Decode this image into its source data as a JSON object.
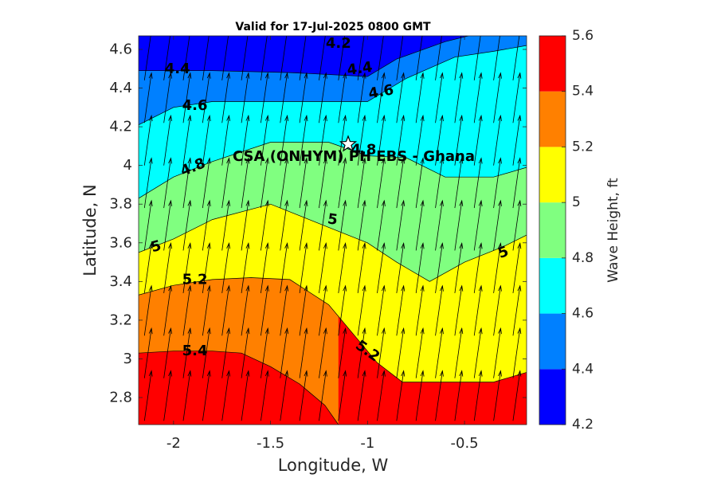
{
  "chart_data": {
    "type": "heatmap",
    "subtype": "filled-contour",
    "title": "Valid for 17-Jul-2025 0800 GMT",
    "xlabel": "Longitude, W",
    "ylabel": "Latitude, N",
    "xlim": [
      -2.18,
      -0.18
    ],
    "ylim": [
      2.66,
      4.67
    ],
    "xticks": [
      -2,
      -1.5,
      -1,
      -0.5
    ],
    "xtick_labels": [
      "-2",
      "-1.5",
      "-1",
      "-0.5"
    ],
    "yticks": [
      2.8,
      3.0,
      3.2,
      3.4,
      3.6,
      3.8,
      4.0,
      4.2,
      4.4,
      4.6
    ],
    "ytick_labels": [
      "2.8",
      "3",
      "3.2",
      "3.4",
      "3.6",
      "3.8",
      "4",
      "4.2",
      "4.4",
      "4.6"
    ],
    "colorbar": {
      "label": "Wave Height, ft",
      "levels": [
        4.2,
        4.4,
        4.6,
        4.8,
        5.0,
        5.2,
        5.4,
        5.6
      ],
      "level_labels": [
        "4.2",
        "4.4",
        "4.6",
        "4.8",
        "5",
        "5.2",
        "5.4",
        "5.6"
      ],
      "colors": [
        "#0000ff",
        "#0080ff",
        "#00ffff",
        "#80ff80",
        "#ffff00",
        "#ff8000",
        "#ff0000"
      ]
    },
    "contours": [
      {
        "level": 4.4,
        "points": [
          [
            -2.18,
            4.49
          ],
          [
            -1.8,
            4.49
          ],
          [
            -1.4,
            4.48
          ],
          [
            -1.0,
            4.46
          ],
          [
            -0.85,
            4.55
          ],
          [
            -0.6,
            4.64
          ],
          [
            -0.48,
            4.67
          ]
        ]
      },
      {
        "level": 4.6,
        "points": [
          [
            -2.18,
            4.21
          ],
          [
            -2.0,
            4.3
          ],
          [
            -1.8,
            4.33
          ],
          [
            -1.4,
            4.33
          ],
          [
            -1.0,
            4.33
          ],
          [
            -0.8,
            4.45
          ],
          [
            -0.55,
            4.56
          ],
          [
            -0.35,
            4.59
          ],
          [
            -0.18,
            4.62
          ]
        ]
      },
      {
        "level": 4.8,
        "points": [
          [
            -2.18,
            3.83
          ],
          [
            -2.0,
            3.94
          ],
          [
            -1.8,
            4.02
          ],
          [
            -1.5,
            4.12
          ],
          [
            -1.2,
            4.12
          ],
          [
            -1.0,
            4.05
          ],
          [
            -0.8,
            4.04
          ],
          [
            -0.6,
            3.94
          ],
          [
            -0.35,
            3.94
          ],
          [
            -0.18,
            3.99
          ]
        ]
      },
      {
        "level": 5.0,
        "points": [
          [
            -2.18,
            3.55
          ],
          [
            -2.0,
            3.62
          ],
          [
            -1.8,
            3.72
          ],
          [
            -1.5,
            3.8
          ],
          [
            -1.2,
            3.68
          ],
          [
            -1.0,
            3.6
          ],
          [
            -0.85,
            3.5
          ],
          [
            -0.68,
            3.4
          ],
          [
            -0.5,
            3.5
          ],
          [
            -0.3,
            3.58
          ],
          [
            -0.18,
            3.64
          ]
        ]
      },
      {
        "level": 5.2,
        "points": [
          [
            -2.18,
            3.33
          ],
          [
            -2.0,
            3.38
          ],
          [
            -1.8,
            3.41
          ],
          [
            -1.6,
            3.42
          ],
          [
            -1.4,
            3.41
          ],
          [
            -1.2,
            3.28
          ],
          [
            -1.05,
            3.1
          ],
          [
            -0.95,
            2.98
          ],
          [
            -0.82,
            2.88
          ],
          [
            -0.6,
            2.88
          ],
          [
            -0.35,
            2.88
          ],
          [
            -0.18,
            2.93
          ]
        ]
      },
      {
        "level": 5.4,
        "points": [
          [
            -2.18,
            3.03
          ],
          [
            -2.0,
            3.04
          ],
          [
            -1.8,
            3.04
          ],
          [
            -1.65,
            3.03
          ],
          [
            -1.5,
            2.96
          ],
          [
            -1.35,
            2.87
          ],
          [
            -1.22,
            2.76
          ],
          [
            -1.15,
            2.66
          ]
        ]
      }
    ],
    "contour_labels": [
      {
        "text": "4.2",
        "x": -1.15,
        "y": 4.63,
        "angle": 0
      },
      {
        "text": "4.4",
        "x": -1.98,
        "y": 4.5,
        "angle": 0
      },
      {
        "text": "4.4",
        "x": -1.04,
        "y": 4.5,
        "angle": -8
      },
      {
        "text": "4.6",
        "x": -1.89,
        "y": 4.31,
        "angle": 0
      },
      {
        "text": "4.6",
        "x": -0.93,
        "y": 4.38,
        "angle": -10
      },
      {
        "text": "4.8",
        "x": -1.9,
        "y": 3.99,
        "angle": -22
      },
      {
        "text": "4.8",
        "x": -1.02,
        "y": 4.08,
        "angle": 0
      },
      {
        "text": "5",
        "x": -2.09,
        "y": 3.58,
        "angle": -15
      },
      {
        "text": "5",
        "x": -1.18,
        "y": 3.72,
        "angle": 8
      },
      {
        "text": "5",
        "x": -0.3,
        "y": 3.55,
        "angle": -20
      },
      {
        "text": "5.2",
        "x": -1.89,
        "y": 3.41,
        "angle": 0
      },
      {
        "text": "5.2",
        "x": -1.0,
        "y": 3.04,
        "angle": 35
      },
      {
        "text": "5.4",
        "x": -1.89,
        "y": 3.04,
        "angle": 0
      }
    ],
    "site": {
      "name": "CSA (ONHYM) PH EBS  - Ghana",
      "x": -1.1,
      "y": 4.11,
      "marker": "star"
    },
    "vectors": {
      "x": [
        -2.15,
        -2.05,
        -1.95,
        -1.85,
        -1.75,
        -1.65,
        -1.55,
        -1.45,
        -1.35,
        -1.25,
        -1.15,
        -1.05,
        -0.95,
        -0.85,
        -0.75,
        -0.65,
        -0.55,
        -0.45,
        -0.35,
        -0.25
      ],
      "y": [
        2.68,
        2.9,
        3.12,
        3.34,
        3.56,
        3.78,
        4.0,
        4.22,
        4.44
      ],
      "direction_deg_from_north": 8,
      "length_deg": 0.26
    },
    "grid": false,
    "legend": "colorbar-right"
  }
}
